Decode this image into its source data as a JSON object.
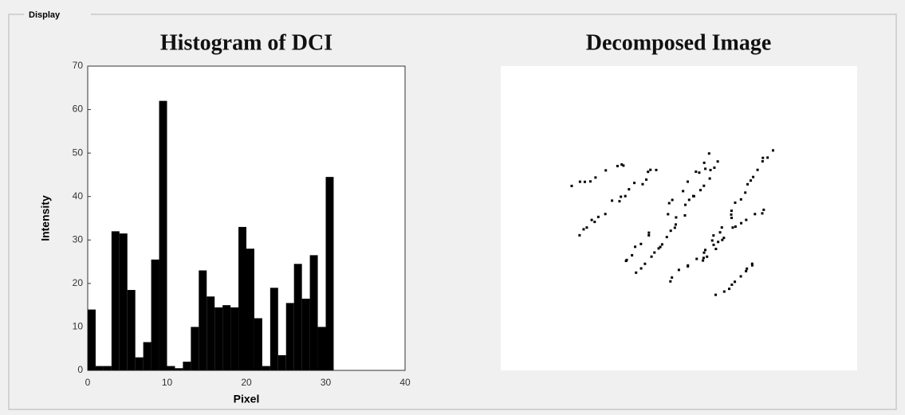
{
  "panel": {
    "title": "Display"
  },
  "image": {
    "title": "Decomposed Image"
  },
  "chart_data": {
    "type": "histogram",
    "title": "Histogram of DCI",
    "x_label": "Pixel",
    "y_label": "Intensity",
    "bins": [
      0,
      1,
      2,
      3,
      4,
      5,
      6,
      7,
      8,
      9,
      10,
      11,
      12,
      13,
      14,
      15,
      16,
      17,
      18,
      19,
      20,
      21,
      22,
      23,
      24,
      25,
      26,
      27,
      28,
      29,
      30,
      31
    ],
    "values": [
      14,
      1,
      1,
      32,
      31.5,
      18.5,
      3,
      6.5,
      25.5,
      62,
      1,
      0.5,
      2,
      10,
      23,
      17,
      14.5,
      15,
      14.5,
      33,
      28,
      12,
      1,
      19,
      3.5,
      15.5,
      24.5,
      16.5,
      26.5,
      10,
      44.5
    ],
    "color": "#000000",
    "xlim": [
      0,
      40
    ],
    "xticks": [
      0,
      10,
      20,
      30,
      40
    ],
    "ylim": [
      0,
      70
    ],
    "yticks": [
      0,
      10,
      20,
      30,
      40,
      50,
      60,
      70
    ],
    "grid": false
  }
}
